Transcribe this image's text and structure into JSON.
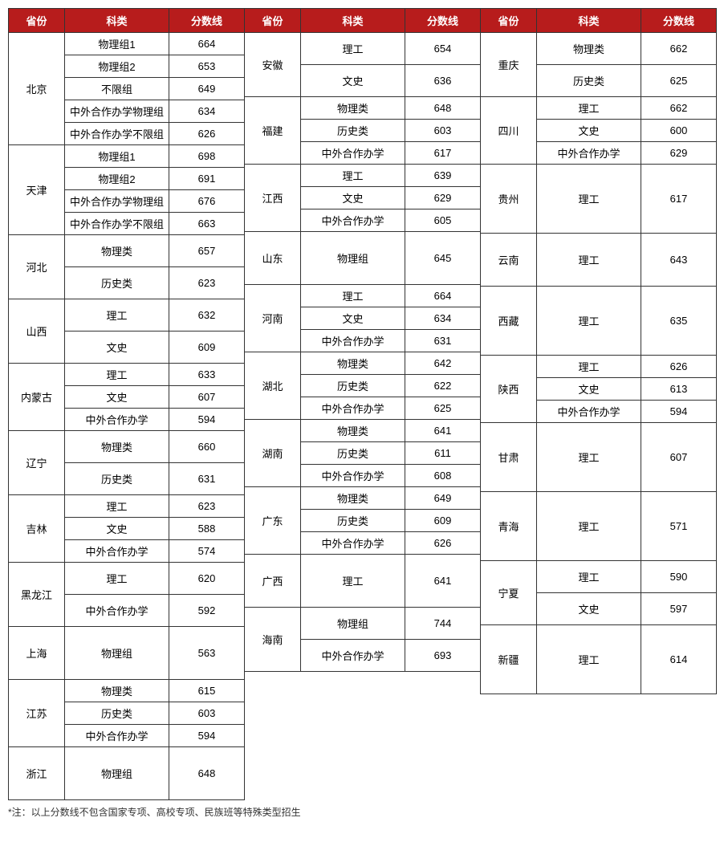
{
  "headers": {
    "prov": "省份",
    "cat": "科类",
    "score": "分数线"
  },
  "columns": {
    "left": [
      {
        "prov": "北京",
        "rows": [
          {
            "cat": "物理组1",
            "score": 664,
            "h": "s"
          },
          {
            "cat": "物理组2",
            "score": 653,
            "h": "s"
          },
          {
            "cat": "不限组",
            "score": 649,
            "h": "m"
          },
          {
            "cat": "中外合作办学物理组",
            "score": 634,
            "h": "s"
          },
          {
            "cat": "中外合作办学不限组",
            "score": 626,
            "h": "s"
          }
        ]
      },
      {
        "prov": "天津",
        "rows": [
          {
            "cat": "物理组1",
            "score": 698,
            "h": "m"
          },
          {
            "cat": "物理组2",
            "score": 691,
            "h": "m"
          },
          {
            "cat": "中外合作办学物理组",
            "score": 676,
            "h": "s"
          },
          {
            "cat": "中外合作办学不限组",
            "score": 663,
            "h": "s"
          }
        ]
      },
      {
        "prov": "河北",
        "rows": [
          {
            "cat": "物理类",
            "score": 657,
            "h": "l"
          },
          {
            "cat": "历史类",
            "score": 623,
            "h": "l"
          }
        ]
      },
      {
        "prov": "山西",
        "rows": [
          {
            "cat": "理工",
            "score": 632,
            "h": "l"
          },
          {
            "cat": "文史",
            "score": 609,
            "h": "l"
          }
        ]
      },
      {
        "prov": "内蒙古",
        "rows": [
          {
            "cat": "理工",
            "score": 633,
            "h": "m"
          },
          {
            "cat": "文史",
            "score": 607,
            "h": "m"
          },
          {
            "cat": "中外合作办学",
            "score": 594,
            "h": "m"
          }
        ]
      },
      {
        "prov": "辽宁",
        "rows": [
          {
            "cat": "物理类",
            "score": 660,
            "h": "l"
          },
          {
            "cat": "历史类",
            "score": 631,
            "h": "l"
          }
        ]
      },
      {
        "prov": "吉林",
        "rows": [
          {
            "cat": "理工",
            "score": 623,
            "h": "m"
          },
          {
            "cat": "文史",
            "score": 588,
            "h": "m"
          },
          {
            "cat": "中外合作办学",
            "score": 574,
            "h": "m"
          }
        ]
      },
      {
        "prov": "黑龙江",
        "rows": [
          {
            "cat": "理工",
            "score": 620,
            "h": "l"
          },
          {
            "cat": "中外合作办学",
            "score": 592,
            "h": "l"
          }
        ]
      },
      {
        "prov": "上海",
        "rows": [
          {
            "cat": "物理组",
            "score": 563,
            "h": "xl"
          }
        ]
      },
      {
        "prov": "江苏",
        "rows": [
          {
            "cat": "物理类",
            "score": 615,
            "h": "m"
          },
          {
            "cat": "历史类",
            "score": 603,
            "h": "m"
          },
          {
            "cat": "中外合作办学",
            "score": 594,
            "h": "m"
          }
        ]
      },
      {
        "prov": "浙江",
        "rows": [
          {
            "cat": "物理组",
            "score": 648,
            "h": "xl"
          }
        ]
      }
    ],
    "mid": [
      {
        "prov": "安徽",
        "rows": [
          {
            "cat": "理工",
            "score": 654,
            "h": "l"
          },
          {
            "cat": "文史",
            "score": 636,
            "h": "l"
          }
        ]
      },
      {
        "prov": "福建",
        "rows": [
          {
            "cat": "物理类",
            "score": 648,
            "h": "m"
          },
          {
            "cat": "历史类",
            "score": 603,
            "h": "m"
          },
          {
            "cat": "中外合作办学",
            "score": 617,
            "h": "m"
          }
        ]
      },
      {
        "prov": "江西",
        "rows": [
          {
            "cat": "理工",
            "score": 639,
            "h": "m"
          },
          {
            "cat": "文史",
            "score": 629,
            "h": "m"
          },
          {
            "cat": "中外合作办学",
            "score": 605,
            "h": "m"
          }
        ]
      },
      {
        "prov": "山东",
        "rows": [
          {
            "cat": "物理组",
            "score": 645,
            "h": "xl"
          }
        ]
      },
      {
        "prov": "河南",
        "rows": [
          {
            "cat": "理工",
            "score": 664,
            "h": "m"
          },
          {
            "cat": "文史",
            "score": 634,
            "h": "m"
          },
          {
            "cat": "中外合作办学",
            "score": 631,
            "h": "m"
          }
        ]
      },
      {
        "prov": "湖北",
        "rows": [
          {
            "cat": "物理类",
            "score": 642,
            "h": "m"
          },
          {
            "cat": "历史类",
            "score": 622,
            "h": "m"
          },
          {
            "cat": "中外合作办学",
            "score": 625,
            "h": "m"
          }
        ]
      },
      {
        "prov": "湖南",
        "rows": [
          {
            "cat": "物理类",
            "score": 641,
            "h": "m"
          },
          {
            "cat": "历史类",
            "score": 611,
            "h": "m"
          },
          {
            "cat": "中外合作办学",
            "score": 608,
            "h": "m"
          }
        ]
      },
      {
        "prov": "广东",
        "rows": [
          {
            "cat": "物理类",
            "score": 649,
            "h": "m"
          },
          {
            "cat": "历史类",
            "score": 609,
            "h": "m"
          },
          {
            "cat": "中外合作办学",
            "score": 626,
            "h": "m"
          }
        ]
      },
      {
        "prov": "广西",
        "rows": [
          {
            "cat": "理工",
            "score": 641,
            "h": "xl"
          }
        ]
      },
      {
        "prov": "海南",
        "rows": [
          {
            "cat": "物理组",
            "score": 744,
            "h": "l"
          },
          {
            "cat": "中外合作办学",
            "score": 693,
            "h": "l"
          }
        ]
      }
    ],
    "right": [
      {
        "prov": "重庆",
        "rows": [
          {
            "cat": "物理类",
            "score": 662,
            "h": "l"
          },
          {
            "cat": "历史类",
            "score": 625,
            "h": "l"
          }
        ]
      },
      {
        "prov": "四川",
        "rows": [
          {
            "cat": "理工",
            "score": 662,
            "h": "m"
          },
          {
            "cat": "文史",
            "score": 600,
            "h": "m"
          },
          {
            "cat": "中外合作办学",
            "score": 629,
            "h": "m"
          }
        ]
      },
      {
        "prov": "贵州",
        "rows": [
          {
            "cat": "理工",
            "score": 617,
            "h": "xxl"
          }
        ]
      },
      {
        "prov": "云南",
        "rows": [
          {
            "cat": "理工",
            "score": 643,
            "h": "xl"
          }
        ]
      },
      {
        "prov": "西藏",
        "rows": [
          {
            "cat": "理工",
            "score": 635,
            "h": "xxl"
          }
        ]
      },
      {
        "prov": "陕西",
        "rows": [
          {
            "cat": "理工",
            "score": 626,
            "h": "m"
          },
          {
            "cat": "文史",
            "score": 613,
            "h": "m"
          },
          {
            "cat": "中外合作办学",
            "score": 594,
            "h": "m"
          }
        ]
      },
      {
        "prov": "甘肃",
        "rows": [
          {
            "cat": "理工",
            "score": 607,
            "h": "xxl"
          }
        ]
      },
      {
        "prov": "青海",
        "rows": [
          {
            "cat": "理工",
            "score": 571,
            "h": "xxl"
          }
        ]
      },
      {
        "prov": "宁夏",
        "rows": [
          {
            "cat": "理工",
            "score": 590,
            "h": "l"
          },
          {
            "cat": "文史",
            "score": 597,
            "h": "l"
          }
        ]
      },
      {
        "prov": "新疆",
        "rows": [
          {
            "cat": "理工",
            "score": 614,
            "h": "xxl"
          }
        ]
      }
    ]
  },
  "heights": {
    "s": 18,
    "m": 27,
    "l": 40,
    "xl": 66,
    "xxl": 86
  },
  "note": "*注：以上分数线不包含国家专项、高校专项、民族班等特殊类型招生"
}
